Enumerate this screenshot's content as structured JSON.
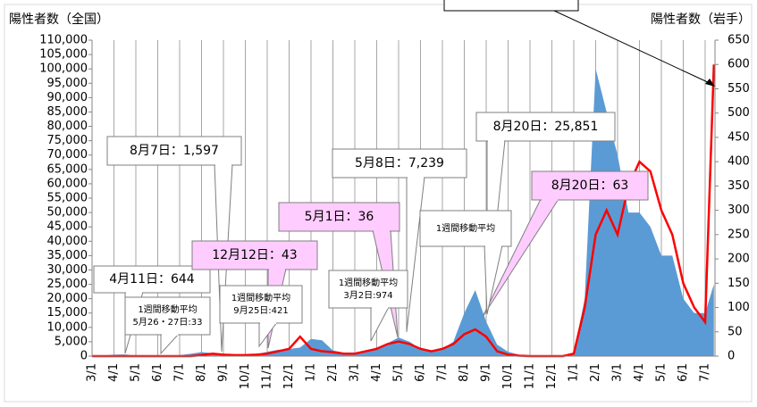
{
  "chart_data": {
    "type": "area-line",
    "y_label": "陽性者数（全国）",
    "y2_label": "陽性者数（岩手）",
    "xlim": [
      0,
      28.45
    ],
    "xticks": [
      {
        "value": 0,
        "label": "3/1"
      },
      {
        "value": 1,
        "label": "4/1"
      },
      {
        "value": 2,
        "label": "5/1"
      },
      {
        "value": 3,
        "label": "6/1"
      },
      {
        "value": 4,
        "label": "7/1"
      },
      {
        "value": 5,
        "label": "8/1"
      },
      {
        "value": 6,
        "label": "9/1"
      },
      {
        "value": 7,
        "label": "10/1"
      },
      {
        "value": 8,
        "label": "11/1"
      },
      {
        "value": 9,
        "label": "12/1"
      },
      {
        "value": 10,
        "label": "1/1"
      },
      {
        "value": 11,
        "label": "2/1"
      },
      {
        "value": 12,
        "label": "3/1"
      },
      {
        "value": 13,
        "label": "4/1"
      },
      {
        "value": 14,
        "label": "5/1"
      },
      {
        "value": 15,
        "label": "6/1"
      },
      {
        "value": 16,
        "label": "7/1"
      },
      {
        "value": 17,
        "label": "8/1"
      },
      {
        "value": 18,
        "label": "9/1"
      },
      {
        "value": 19,
        "label": "10/1"
      },
      {
        "value": 20,
        "label": "11/1"
      },
      {
        "value": 21,
        "label": "12/1"
      },
      {
        "value": 22,
        "label": "1/1"
      },
      {
        "value": 23,
        "label": "2/1"
      },
      {
        "value": 24,
        "label": "3/1"
      },
      {
        "value": 25,
        "label": "4/1"
      },
      {
        "value": 26,
        "label": "5/1"
      },
      {
        "value": 27,
        "label": "6/1"
      },
      {
        "value": 28,
        "label": "7/1"
      }
    ],
    "ylim": [
      0,
      110000
    ],
    "yticks": [
      0,
      {
        "value": 5000,
        "label": "5,000"
      },
      {
        "value": 10000,
        "label": "10,000"
      },
      {
        "value": 15000,
        "label": "15,000"
      },
      {
        "value": 20000,
        "label": "20,000"
      },
      {
        "value": 25000,
        "label": "25,000"
      },
      {
        "value": 30000,
        "label": "30,000"
      },
      {
        "value": 35000,
        "label": "35,000"
      },
      {
        "value": 40000,
        "label": "40,000"
      },
      {
        "value": 45000,
        "label": "45,000"
      },
      {
        "value": 50000,
        "label": "50,000"
      },
      {
        "value": 55000,
        "label": "55,000"
      },
      {
        "value": 60000,
        "label": "60,000"
      },
      {
        "value": 65000,
        "label": "65,000"
      },
      {
        "value": 70000,
        "label": "70,000"
      },
      {
        "value": 75000,
        "label": "75,000"
      },
      {
        "value": 80000,
        "label": "80,000"
      },
      {
        "value": 85000,
        "label": "85,000"
      },
      {
        "value": 90000,
        "label": "90,000"
      },
      {
        "value": 95000,
        "label": "95,000"
      },
      {
        "value": 100000,
        "label": "100,000"
      },
      {
        "value": 105000,
        "label": "105,000"
      },
      {
        "value": 110000,
        "label": "110,000"
      }
    ],
    "y2lim": [
      0,
      650
    ],
    "y2ticks": [
      0,
      50,
      100,
      150,
      200,
      250,
      300,
      350,
      400,
      450,
      500,
      550,
      600,
      650
    ],
    "grid": true,
    "x": [
      0,
      0.5,
      1,
      1.5,
      2,
      2.5,
      3,
      3.5,
      4,
      4.5,
      5,
      5.5,
      6,
      6.5,
      7,
      7.5,
      8,
      8.5,
      9,
      9.5,
      10,
      10.5,
      11,
      11.5,
      12,
      12.5,
      13,
      13.5,
      14,
      14.5,
      15,
      15.5,
      16,
      16.5,
      17,
      17.5,
      18,
      18.5,
      19,
      19.5,
      20,
      20.5,
      21,
      21.5,
      22,
      22.5,
      23,
      23.5,
      24,
      24.5,
      25,
      25.5,
      26,
      26.5,
      27,
      27.5,
      28,
      28.4
    ],
    "series": [
      {
        "name": "全国",
        "color": "#5b9bd5",
        "kind": "area",
        "values": [
          50,
          200,
          500,
          600,
          200,
          50,
          50,
          80,
          300,
          800,
          1400,
          1000,
          600,
          500,
          500,
          600,
          1500,
          2200,
          2500,
          3000,
          6000,
          5500,
          2000,
          1200,
          1200,
          1500,
          3000,
          4500,
          6500,
          5000,
          2500,
          1600,
          2500,
          5000,
          15000,
          23000,
          12000,
          4000,
          1500,
          500,
          200,
          150,
          150,
          200,
          1000,
          20000,
          100000,
          85000,
          70000,
          50000,
          50000,
          45000,
          35000,
          35000,
          20000,
          15000,
          15000,
          25000
        ]
      },
      {
        "name": "岩手",
        "color": "#ff0000",
        "kind": "line",
        "axis": "y2",
        "values": [
          0,
          0,
          0,
          0,
          0,
          0,
          0,
          0,
          0,
          0,
          2,
          5,
          3,
          2,
          2,
          3,
          5,
          10,
          15,
          40,
          15,
          10,
          8,
          5,
          5,
          10,
          15,
          25,
          30,
          25,
          15,
          10,
          15,
          25,
          45,
          55,
          40,
          10,
          3,
          1,
          0,
          0,
          0,
          0,
          5,
          100,
          250,
          300,
          250,
          350,
          400,
          380,
          300,
          250,
          150,
          100,
          70,
          600
        ]
      }
    ],
    "annotations": [
      "8月7日：1,597",
      "5月8日：7,239",
      "8月20日：25,851",
      "4月11日：644",
      "12月12日：43",
      "5月1日：36",
      "8月20日：63",
      "1週間移動平均",
      "5月26・27日:33",
      "1週間移動平均",
      "9月25日:421",
      "1週間移動平均",
      "3月2日:974",
      "1週間移動平均"
    ]
  }
}
